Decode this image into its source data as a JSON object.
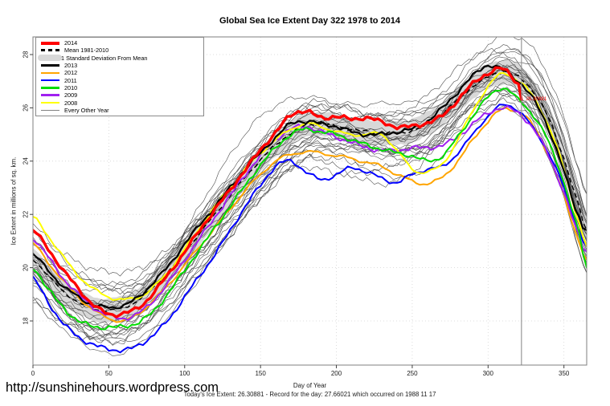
{
  "header": {
    "title": "Global Sea Ice Extent Day 322 1978 to 2014"
  },
  "footer": {
    "url": "http://sunshinehours.wordpress.com",
    "note": "Today's Ice Extent: 26.30881  - Record for the day: 27.66021 which occurred on 1988 11 17"
  },
  "legend": {
    "items": [
      {
        "label": "2014",
        "color": "#FF0000",
        "type": "thick"
      },
      {
        "label": "Mean 1981-2010",
        "color": "#000000",
        "type": "dashed"
      },
      {
        "label": "1 Standard Deviation From Mean",
        "color": "#D8D8D8",
        "type": "band"
      },
      {
        "label": "2013",
        "color": "#000000",
        "type": "medium"
      },
      {
        "label": "2012",
        "color": "#FFA500",
        "type": "medium"
      },
      {
        "label": "2011",
        "color": "#0000FF",
        "type": "medium"
      },
      {
        "label": "2010",
        "color": "#00DD00",
        "type": "medium"
      },
      {
        "label": "2009",
        "color": "#A020F0",
        "type": "medium"
      },
      {
        "label": "2008",
        "color": "#FFFF00",
        "type": "medium"
      },
      {
        "label": "Every Other Year",
        "color": "#808080",
        "type": "thin"
      }
    ]
  },
  "chart_data": {
    "type": "line",
    "title": "Global Sea Ice Extent Day 322 1978 to 2014",
    "xlabel": "Day of Year",
    "ylabel": "Ice Extent in millions of sq. km.",
    "xlim": [
      0,
      365
    ],
    "ylim": [
      16.3,
      28.6
    ],
    "x_ticks": [
      0,
      50,
      100,
      150,
      200,
      250,
      300,
      350
    ],
    "y_ticks": [
      18,
      20,
      22,
      24,
      26,
      28
    ],
    "grid": true,
    "legend_position": "top-left",
    "vline": {
      "day": 322,
      "color": "#8c8c8c"
    },
    "annotation": {
      "text": "26.30881",
      "color": "#FF0000",
      "day": 325,
      "value": 26.35
    },
    "sample_days": [
      0,
      10,
      20,
      30,
      40,
      50,
      60,
      70,
      80,
      90,
      100,
      110,
      120,
      130,
      140,
      150,
      160,
      170,
      180,
      190,
      200,
      210,
      220,
      230,
      240,
      250,
      260,
      270,
      280,
      290,
      300,
      310,
      320,
      330,
      340,
      350,
      360,
      365
    ],
    "band": {
      "name": "1 Standard Deviation From Mean",
      "color": "#D8D8D8",
      "halfwidth": 0.45
    },
    "mean": {
      "name": "Mean 1981-2010",
      "color": "#000000",
      "width": 1.5,
      "dash": "6,4",
      "values": [
        20.3,
        19.7,
        19.1,
        18.7,
        18.45,
        18.4,
        18.5,
        18.8,
        19.3,
        19.9,
        20.6,
        21.3,
        22.0,
        22.7,
        23.4,
        24.05,
        24.6,
        25.05,
        25.35,
        25.4,
        25.3,
        25.2,
        25.1,
        25.05,
        25.05,
        25.15,
        25.4,
        25.8,
        26.3,
        26.8,
        27.15,
        27.35,
        27.15,
        26.6,
        25.6,
        24.1,
        22.3,
        21.4
      ]
    },
    "series": [
      {
        "name": "2012",
        "color": "#FFA500",
        "width": 2,
        "values": [
          20.9,
          20.2,
          19.5,
          18.9,
          18.4,
          18.1,
          18.0,
          18.3,
          18.8,
          19.4,
          20.1,
          20.8,
          21.5,
          22.2,
          22.9,
          23.5,
          24.0,
          24.25,
          24.35,
          24.3,
          24.2,
          24.1,
          23.95,
          23.8,
          23.5,
          23.25,
          23.15,
          23.4,
          24.0,
          24.8,
          25.5,
          25.95,
          25.85,
          25.3,
          24.2,
          22.7,
          21.0,
          20.3
        ]
      },
      {
        "name": "2011",
        "color": "#0000FF",
        "width": 2,
        "values": [
          19.6,
          18.7,
          17.9,
          17.4,
          17.1,
          16.95,
          16.9,
          17.1,
          17.5,
          18.1,
          18.9,
          19.7,
          20.5,
          21.4,
          22.3,
          23.1,
          23.8,
          24.0,
          23.6,
          23.3,
          23.5,
          23.75,
          23.6,
          23.35,
          23.2,
          23.5,
          23.7,
          23.8,
          24.3,
          25.0,
          25.7,
          26.1,
          25.9,
          25.2,
          24.3,
          23.0,
          21.4,
          20.8
        ]
      },
      {
        "name": "2009",
        "color": "#A020F0",
        "width": 2,
        "values": [
          21.1,
          20.4,
          19.6,
          19.0,
          18.5,
          18.2,
          18.1,
          18.3,
          18.8,
          19.5,
          20.3,
          21.1,
          21.9,
          22.7,
          23.5,
          24.2,
          24.8,
          25.2,
          25.3,
          25.1,
          24.9,
          24.7,
          24.5,
          24.4,
          24.4,
          24.5,
          24.5,
          24.6,
          24.9,
          25.4,
          25.8,
          26.0,
          25.8,
          25.2,
          24.2,
          22.8,
          21.2,
          20.6
        ]
      },
      {
        "name": "2008",
        "color": "#FFFF00",
        "width": 2,
        "values": [
          21.9,
          21.2,
          20.4,
          19.7,
          19.2,
          18.9,
          18.8,
          18.9,
          19.3,
          19.9,
          20.7,
          21.5,
          22.3,
          23.0,
          23.7,
          24.3,
          24.8,
          25.2,
          25.4,
          25.3,
          25.1,
          25.0,
          25.0,
          25.0,
          24.4,
          23.7,
          23.6,
          23.9,
          24.8,
          25.9,
          26.8,
          27.3,
          27.0,
          26.4,
          25.3,
          23.7,
          21.7,
          20.8
        ]
      },
      {
        "name": "2010",
        "color": "#00DD00",
        "width": 2,
        "values": [
          20.0,
          19.2,
          18.5,
          18.0,
          17.8,
          17.75,
          17.8,
          17.95,
          18.4,
          19.1,
          19.9,
          20.7,
          21.5,
          22.3,
          23.1,
          23.85,
          24.5,
          25.0,
          25.2,
          25.1,
          25.0,
          24.8,
          24.6,
          24.45,
          24.3,
          24.2,
          24.0,
          24.2,
          24.9,
          25.7,
          26.4,
          26.75,
          26.3,
          25.7,
          24.7,
          23.2,
          21.3,
          20.0
        ]
      },
      {
        "name": "2013",
        "color": "#000000",
        "width": 2.2,
        "values": [
          20.5,
          19.9,
          19.3,
          18.9,
          18.6,
          18.5,
          18.6,
          18.9,
          19.5,
          20.1,
          20.9,
          21.6,
          22.3,
          23.0,
          23.7,
          24.3,
          24.9,
          25.4,
          25.5,
          25.4,
          25.3,
          25.1,
          25.0,
          25.0,
          25.1,
          25.2,
          25.5,
          26.0,
          26.6,
          27.2,
          27.6,
          27.4,
          27.0,
          26.3,
          25.2,
          23.6,
          21.9,
          21.4
        ]
      },
      {
        "name": "2014",
        "color": "#FF0000",
        "width": 3.4,
        "days": [
          0,
          10,
          20,
          30,
          40,
          50,
          60,
          70,
          80,
          90,
          100,
          110,
          120,
          130,
          140,
          150,
          160,
          170,
          180,
          190,
          200,
          210,
          220,
          230,
          240,
          250,
          260,
          270,
          280,
          290,
          300,
          310,
          320,
          322
        ],
        "values": [
          21.4,
          20.7,
          19.9,
          19.2,
          18.6,
          18.25,
          18.3,
          18.5,
          19.1,
          19.8,
          20.6,
          21.4,
          22.2,
          22.9,
          23.7,
          24.4,
          25.1,
          25.7,
          25.9,
          25.6,
          25.7,
          25.55,
          25.65,
          25.45,
          25.3,
          25.3,
          25.45,
          25.7,
          26.3,
          26.9,
          27.3,
          27.45,
          26.9,
          26.31
        ]
      }
    ],
    "background": {
      "name": "Every Other Year",
      "color": "#4D4D4D",
      "width": 0.6,
      "count": 26
    }
  }
}
